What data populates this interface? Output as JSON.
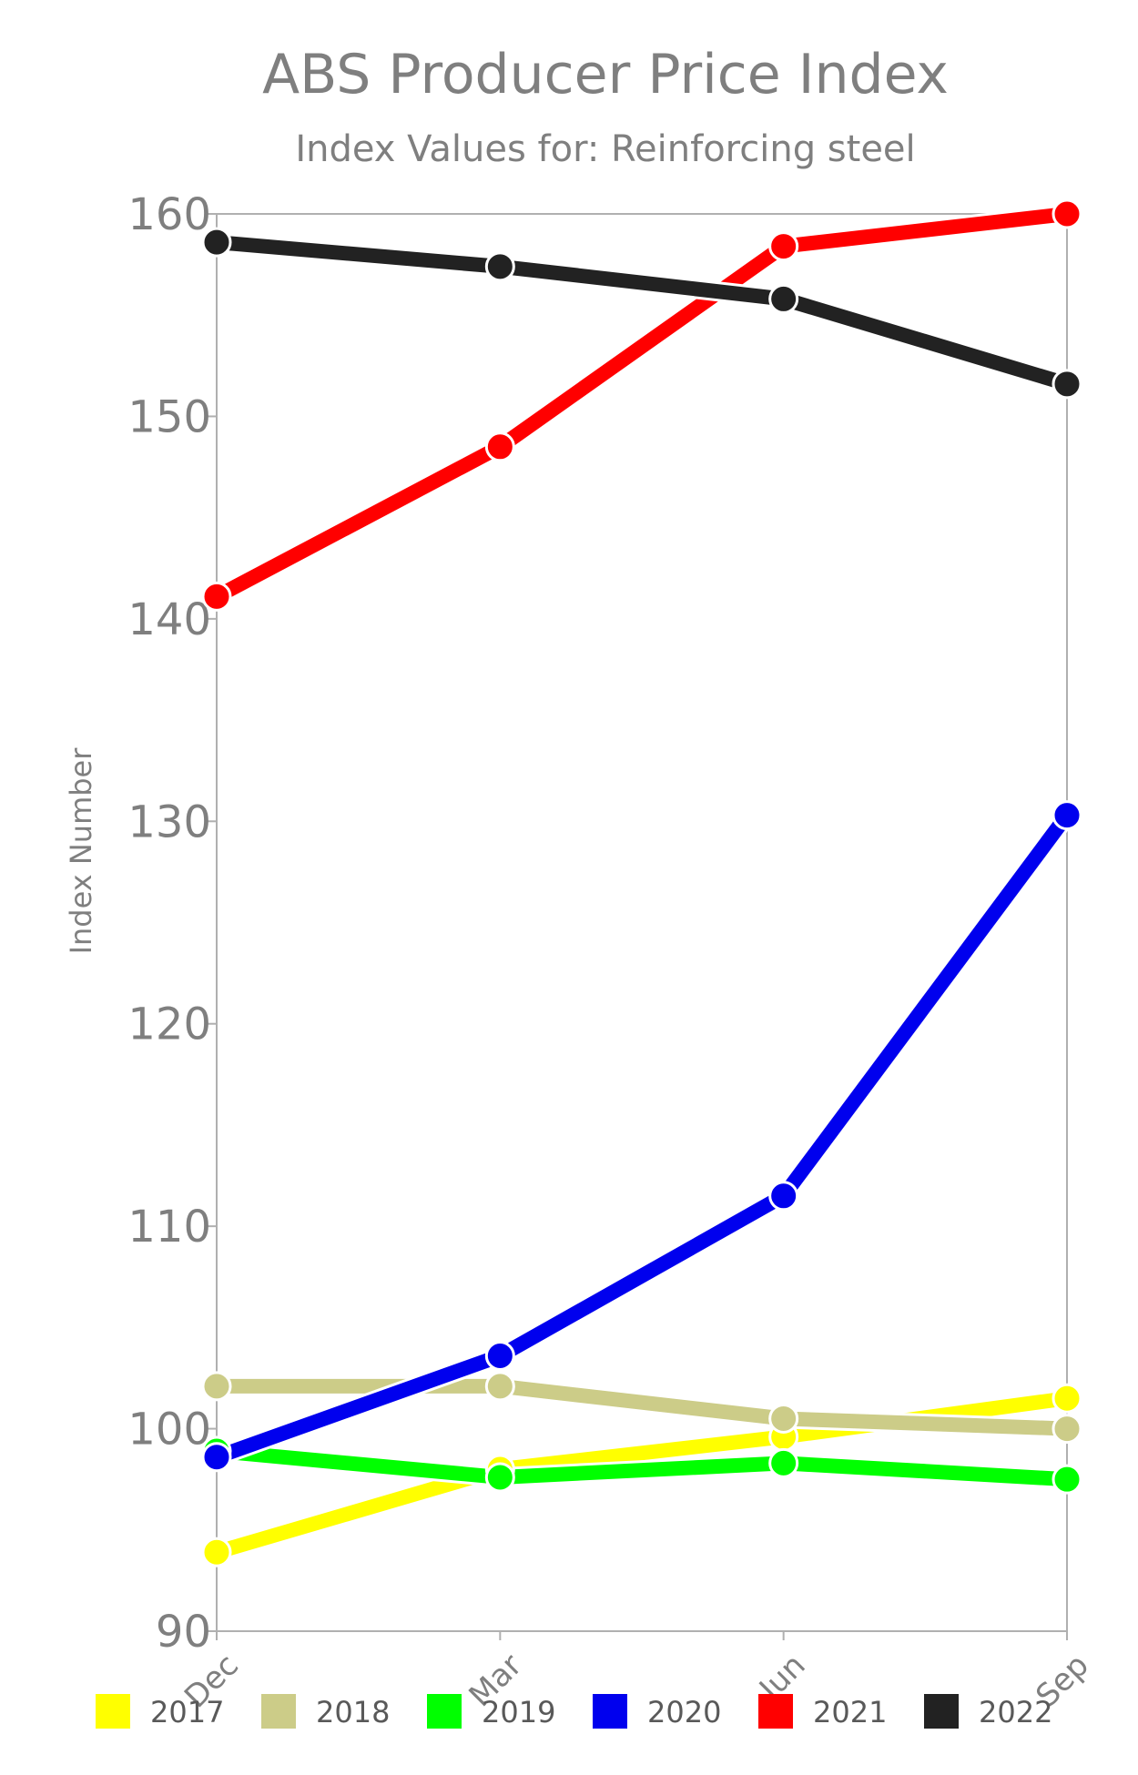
{
  "chart_data": {
    "type": "line",
    "title": "ABS Producer Price Index",
    "subtitle": "Index Values for: Reinforcing steel",
    "xlabel": "",
    "ylabel": "Index Number",
    "categories": [
      "Dec",
      "Mar",
      "Jun",
      "Sep"
    ],
    "ylim": [
      90,
      160
    ],
    "yticks": [
      90,
      100,
      110,
      120,
      130,
      140,
      150,
      160
    ],
    "grid": false,
    "legend_position": "bottom",
    "series": [
      {
        "name": "2017",
        "color": "#ffff00",
        "values": [
          93.9,
          98.0,
          99.6,
          101.5
        ]
      },
      {
        "name": "2018",
        "color": "#cccc88",
        "values": [
          102.1,
          102.1,
          100.5,
          100.0
        ]
      },
      {
        "name": "2019",
        "color": "#00ff00",
        "values": [
          98.9,
          97.6,
          98.3,
          97.5
        ]
      },
      {
        "name": "2020",
        "color": "#0000ee",
        "values": [
          98.6,
          103.6,
          111.5,
          130.3
        ]
      },
      {
        "name": "2021",
        "color": "#ff0000",
        "values": [
          141.1,
          148.5,
          158.4,
          160.0
        ]
      },
      {
        "name": "2022",
        "color": "#222222",
        "values": [
          158.6,
          157.4,
          155.8,
          151.6
        ]
      }
    ]
  }
}
